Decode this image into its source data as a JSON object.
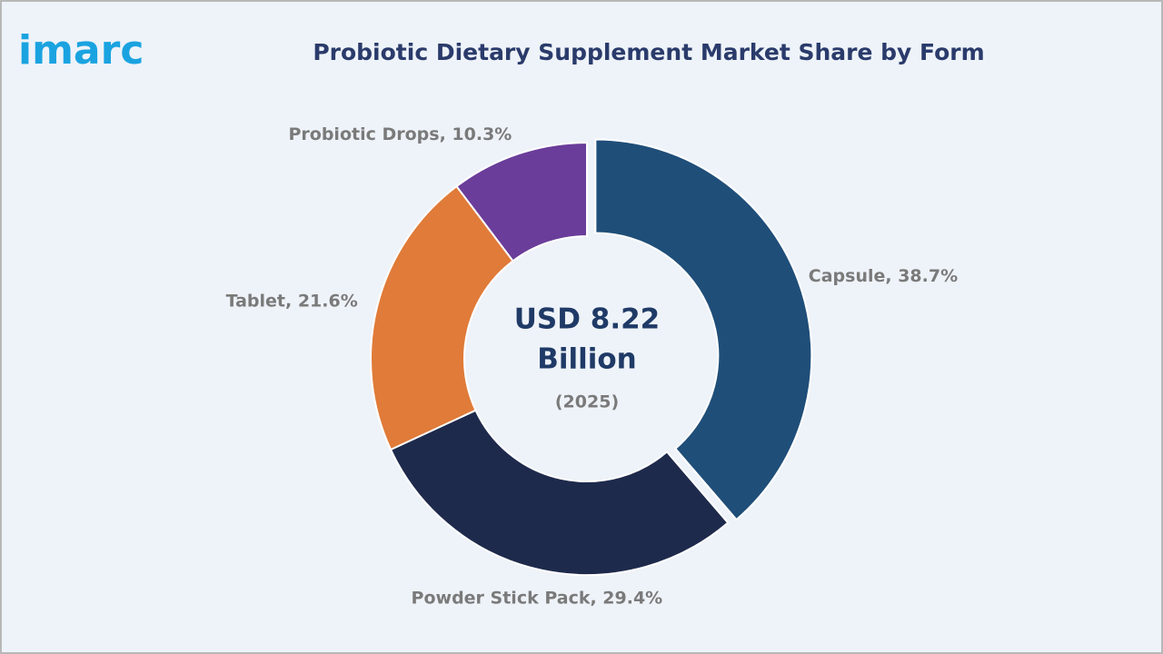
{
  "logo": "imarc",
  "chart_data": {
    "type": "pie",
    "donut": true,
    "title": "Probiotic Dietary Supplement Market Share by Form",
    "values": [
      38.7,
      29.4,
      21.6,
      10.3
    ],
    "value_labels": [
      "Capsule, 38.7%",
      "Powder Stick Pack, 29.4%",
      "Tablet, 21.6%",
      "Probiotic Drops, 10.3%"
    ],
    "colors": [
      "#1f4e79",
      "#1e2a4c",
      "#e07b39",
      "#6a3d9a"
    ],
    "exploded": [
      true,
      false,
      false,
      false
    ],
    "center_label": [
      "USD 8.22",
      "Billion"
    ],
    "center_sublabel": "(2025)"
  }
}
